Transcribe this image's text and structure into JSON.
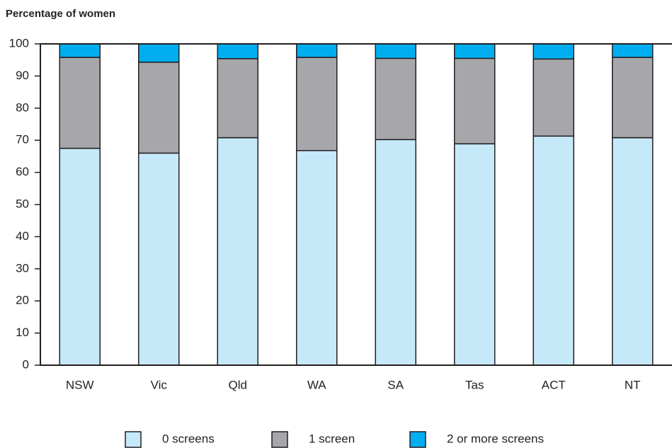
{
  "chart_data": {
    "type": "stacked-bar",
    "title": "Percentage of women",
    "categories": [
      "NSW",
      "Vic",
      "Qld",
      "WA",
      "SA",
      "Tas",
      "ACT",
      "NT"
    ],
    "series": [
      {
        "name": "0 screens",
        "color": "#c6e9f9",
        "values": [
          67.5,
          66.0,
          70.8,
          66.8,
          70.2,
          68.9,
          71.3,
          70.8
        ]
      },
      {
        "name": "1 screen",
        "color": "#a7a7ab",
        "values": [
          28.3,
          28.3,
          24.6,
          29.0,
          25.3,
          26.6,
          24.0,
          25.0
        ]
      },
      {
        "name": "2 or more screens",
        "color": "#00aeef",
        "values": [
          4.2,
          5.7,
          4.6,
          4.2,
          4.5,
          4.5,
          4.7,
          4.2
        ]
      }
    ],
    "ylim": [
      0,
      100
    ],
    "yticks": [
      0,
      10,
      20,
      30,
      40,
      50,
      60,
      70,
      80,
      90,
      100
    ],
    "legend": "bottom"
  }
}
